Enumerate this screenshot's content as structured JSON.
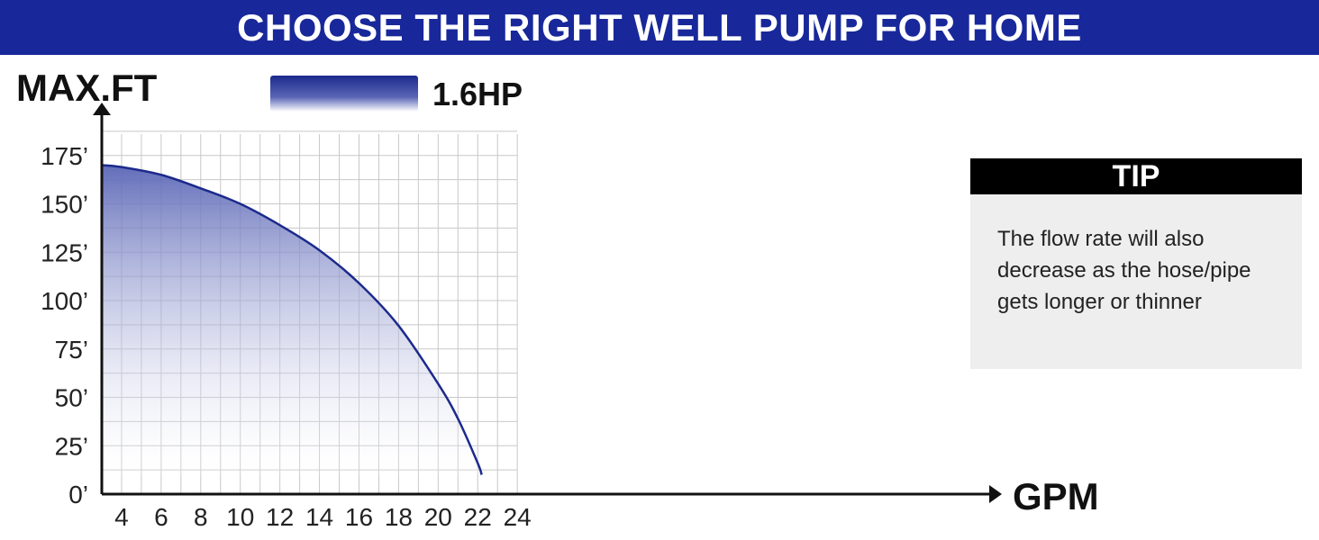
{
  "header": {
    "title": "CHOOSE THE RIGHT WELL PUMP FOR HOME"
  },
  "colors": {
    "banner": "#18289a",
    "curve": "#1c2a8c",
    "fill_top": "#5a66b6",
    "grid": "#c8c8c8",
    "axis": "#111111"
  },
  "tip": {
    "title": "TIP",
    "text": "The flow rate will also decrease as the hose/pipe gets longer or thinner"
  },
  "chart_data": {
    "type": "area",
    "xlabel": "GPM",
    "ylabel": "MAX.FT",
    "xlim": [
      3,
      25
    ],
    "ylim": [
      0,
      190
    ],
    "x_ticks": [
      4,
      6,
      8,
      10,
      12,
      14,
      16,
      18,
      20,
      22,
      24
    ],
    "x_tick_labels": [
      "4",
      "6",
      "8",
      "10",
      "12",
      "14",
      "16",
      "18",
      "20",
      "22",
      "24"
    ],
    "y_ticks": [
      0,
      25,
      50,
      75,
      100,
      125,
      150,
      175
    ],
    "y_tick_labels": [
      "0’",
      "25’",
      "50’",
      "75’",
      "100’",
      "125’",
      "150’",
      "175’"
    ],
    "grid": true,
    "legend": "top-left",
    "series": [
      {
        "name": "1.6HP",
        "x": [
          3,
          4,
          6,
          8,
          10,
          12,
          14,
          16,
          18,
          20,
          21,
          22,
          22.2
        ],
        "y": [
          170,
          169,
          165,
          158,
          150,
          139,
          126,
          109,
          87,
          57,
          39,
          16,
          10
        ]
      }
    ]
  }
}
